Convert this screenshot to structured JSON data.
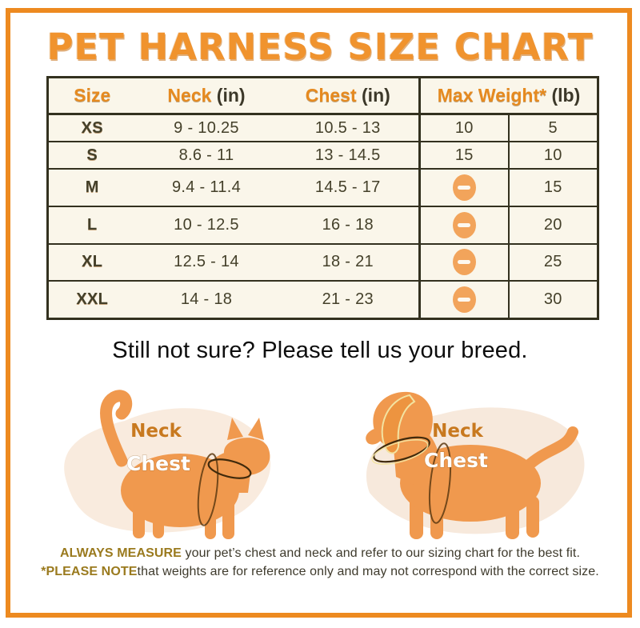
{
  "title": "PET HARNESS SIZE CHART",
  "table": {
    "headers": {
      "size": "Size",
      "neck": "Neck",
      "neck_unit": " (in)",
      "chest": "Chest",
      "chest_unit": " (in)",
      "weight": "Max Weight*",
      "weight_unit": " (lb)"
    },
    "rows": [
      {
        "size": "XS",
        "neck": "9 - 10.25",
        "chest": "10.5 - 13",
        "cat_weight": "10",
        "dog_weight": "5"
      },
      {
        "size": "S",
        "neck": "8.6 - 11",
        "chest": "13 - 14.5",
        "cat_weight": "15",
        "dog_weight": "10"
      },
      {
        "size": "M",
        "neck": "9.4 - 11.4",
        "chest": "14.5 - 17",
        "cat_weight": null,
        "dog_weight": "15"
      },
      {
        "size": "L",
        "neck": "10 - 12.5",
        "chest": "16 - 18",
        "cat_weight": null,
        "dog_weight": "20"
      },
      {
        "size": "XL",
        "neck": "12.5 - 14",
        "chest": "18 - 21",
        "cat_weight": null,
        "dog_weight": "25"
      },
      {
        "size": "XXL",
        "neck": "14 - 18",
        "chest": "21 - 23",
        "cat_weight": null,
        "dog_weight": "30"
      }
    ],
    "dash_icon": "minus-icon"
  },
  "subtitle": "Still not sure? Please tell us your breed.",
  "figures": {
    "cat": {
      "neck_label": "Neck",
      "chest_label": "Chest"
    },
    "dog": {
      "neck_label": "Neck",
      "chest_label": "Chest"
    }
  },
  "notes": [
    {
      "bold": "ALWAYS MEASURE",
      "rest": " your pet’s chest and neck and refer to our sizing chart for the best fit."
    },
    {
      "bold": "*PLEASE NOTE",
      "rest": "that weights are for reference only and may not correspond with the correct size."
    }
  ],
  "colors": {
    "frame_orange": "#ED8A20",
    "title_orange": "#F0932E",
    "header_orange": "#E68A1F",
    "size_label_orange": "#EA8C28",
    "table_bg": "#FAF6EA",
    "table_border": "#33311F",
    "value_text": "#44402A",
    "dash_fill": "#F2A45B",
    "animal_fill": "#F0994E",
    "blob_fill": "#F8E8D8",
    "note_bold": "#9A7A1E"
  }
}
